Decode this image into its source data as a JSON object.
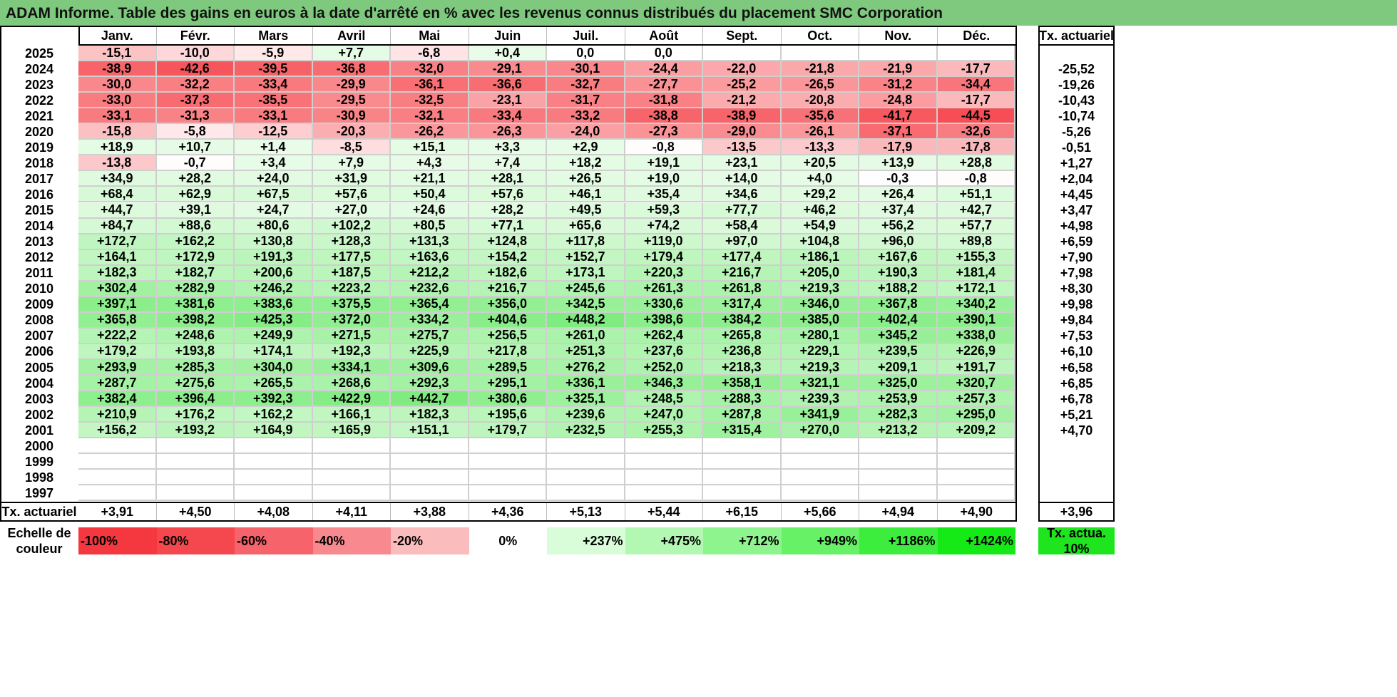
{
  "title": "ADAM Informe. Table des gains en euros à la date d'arrêté en % avec les revenus connus distribués du placement SMC Corporation",
  "chart_data": {
    "type": "heatmap",
    "title": "ADAM Informe. Table des gains en euros à la date d'arrêté en % avec les revenus connus distribués du placement SMC Corporation",
    "columns": [
      "Janv.",
      "Févr.",
      "Mars",
      "Avril",
      "Mai",
      "Juin",
      "Juil.",
      "Août",
      "Sept.",
      "Oct.",
      "Nov.",
      "Déc."
    ],
    "row_total_header": "Tx. actuariel",
    "rows": [
      {
        "year": "2025",
        "values": [
          "-15,1",
          "-10,0",
          "-5,9",
          "+7,7",
          "-6,8",
          "+0,4",
          "0,0",
          "0,0",
          "",
          "",
          "",
          ""
        ],
        "rate": ""
      },
      {
        "year": "2024",
        "values": [
          "-38,9",
          "-42,6",
          "-39,5",
          "-36,8",
          "-32,0",
          "-29,1",
          "-30,1",
          "-24,4",
          "-22,0",
          "-21,8",
          "-21,9",
          "-17,7"
        ],
        "rate": "-25,52"
      },
      {
        "year": "2023",
        "values": [
          "-30,0",
          "-32,2",
          "-33,4",
          "-29,9",
          "-36,1",
          "-36,6",
          "-32,7",
          "-27,7",
          "-25,2",
          "-26,5",
          "-31,2",
          "-34,4"
        ],
        "rate": "-19,26"
      },
      {
        "year": "2022",
        "values": [
          "-33,0",
          "-37,3",
          "-35,5",
          "-29,5",
          "-32,5",
          "-23,1",
          "-31,7",
          "-31,8",
          "-21,2",
          "-20,8",
          "-24,8",
          "-17,7"
        ],
        "rate": "-10,43"
      },
      {
        "year": "2021",
        "values": [
          "-33,1",
          "-31,3",
          "-33,1",
          "-30,9",
          "-32,1",
          "-33,4",
          "-33,2",
          "-38,8",
          "-38,9",
          "-35,6",
          "-41,7",
          "-44,5"
        ],
        "rate": "-10,74"
      },
      {
        "year": "2020",
        "values": [
          "-15,8",
          "-5,8",
          "-12,5",
          "-20,3",
          "-26,2",
          "-26,3",
          "-24,0",
          "-27,3",
          "-29,0",
          "-26,1",
          "-37,1",
          "-32,6"
        ],
        "rate": "-5,26"
      },
      {
        "year": "2019",
        "values": [
          "+18,9",
          "+10,7",
          "+1,4",
          "-8,5",
          "+15,1",
          "+3,3",
          "+2,9",
          "-0,8",
          "-13,5",
          "-13,3",
          "-17,9",
          "-17,8"
        ],
        "rate": "-0,51"
      },
      {
        "year": "2018",
        "values": [
          "-13,8",
          "-0,7",
          "+3,4",
          "+7,9",
          "+4,3",
          "+7,4",
          "+18,2",
          "+19,1",
          "+23,1",
          "+20,5",
          "+13,9",
          "+28,8"
        ],
        "rate": "+1,27"
      },
      {
        "year": "2017",
        "values": [
          "+34,9",
          "+28,2",
          "+24,0",
          "+31,9",
          "+21,1",
          "+28,1",
          "+26,5",
          "+19,0",
          "+14,0",
          "+4,0",
          "-0,3",
          "-0,8"
        ],
        "rate": "+2,04"
      },
      {
        "year": "2016",
        "values": [
          "+68,4",
          "+62,9",
          "+67,5",
          "+57,6",
          "+50,4",
          "+57,6",
          "+46,1",
          "+35,4",
          "+34,6",
          "+29,2",
          "+26,4",
          "+51,1"
        ],
        "rate": "+4,45"
      },
      {
        "year": "2015",
        "values": [
          "+44,7",
          "+39,1",
          "+24,7",
          "+27,0",
          "+24,6",
          "+28,2",
          "+49,5",
          "+59,3",
          "+77,7",
          "+46,2",
          "+37,4",
          "+42,7"
        ],
        "rate": "+3,47"
      },
      {
        "year": "2014",
        "values": [
          "+84,7",
          "+88,6",
          "+80,6",
          "+102,2",
          "+80,5",
          "+77,1",
          "+65,6",
          "+74,2",
          "+58,4",
          "+54,9",
          "+56,2",
          "+57,7"
        ],
        "rate": "+4,98"
      },
      {
        "year": "2013",
        "values": [
          "+172,7",
          "+162,2",
          "+130,8",
          "+128,3",
          "+131,3",
          "+124,8",
          "+117,8",
          "+119,0",
          "+97,0",
          "+104,8",
          "+96,0",
          "+89,8"
        ],
        "rate": "+6,59"
      },
      {
        "year": "2012",
        "values": [
          "+164,1",
          "+172,9",
          "+191,3",
          "+177,5",
          "+163,6",
          "+154,2",
          "+152,7",
          "+179,4",
          "+177,4",
          "+186,1",
          "+167,6",
          "+155,3"
        ],
        "rate": "+7,90"
      },
      {
        "year": "2011",
        "values": [
          "+182,3",
          "+182,7",
          "+200,6",
          "+187,5",
          "+212,2",
          "+182,6",
          "+173,1",
          "+220,3",
          "+216,7",
          "+205,0",
          "+190,3",
          "+181,4"
        ],
        "rate": "+7,98"
      },
      {
        "year": "2010",
        "values": [
          "+302,4",
          "+282,9",
          "+246,2",
          "+223,2",
          "+232,6",
          "+216,7",
          "+245,6",
          "+261,3",
          "+261,8",
          "+219,3",
          "+188,2",
          "+172,1"
        ],
        "rate": "+8,30"
      },
      {
        "year": "2009",
        "values": [
          "+397,1",
          "+381,6",
          "+383,6",
          "+375,5",
          "+365,4",
          "+356,0",
          "+342,5",
          "+330,6",
          "+317,4",
          "+346,0",
          "+367,8",
          "+340,2"
        ],
        "rate": "+9,98"
      },
      {
        "year": "2008",
        "values": [
          "+365,8",
          "+398,2",
          "+425,3",
          "+372,0",
          "+334,2",
          "+404,6",
          "+448,2",
          "+398,6",
          "+384,2",
          "+385,0",
          "+402,4",
          "+390,1"
        ],
        "rate": "+9,84"
      },
      {
        "year": "2007",
        "values": [
          "+222,2",
          "+248,6",
          "+249,9",
          "+271,5",
          "+275,7",
          "+256,5",
          "+261,0",
          "+262,4",
          "+265,8",
          "+280,1",
          "+345,2",
          "+338,0"
        ],
        "rate": "+7,53"
      },
      {
        "year": "2006",
        "values": [
          "+179,2",
          "+193,8",
          "+174,1",
          "+192,3",
          "+225,9",
          "+217,8",
          "+251,3",
          "+237,6",
          "+236,8",
          "+229,1",
          "+239,5",
          "+226,9"
        ],
        "rate": "+6,10"
      },
      {
        "year": "2005",
        "values": [
          "+293,9",
          "+285,3",
          "+304,0",
          "+334,1",
          "+309,6",
          "+289,5",
          "+276,2",
          "+252,0",
          "+218,3",
          "+219,3",
          "+209,1",
          "+191,7"
        ],
        "rate": "+6,58"
      },
      {
        "year": "2004",
        "values": [
          "+287,7",
          "+275,6",
          "+265,5",
          "+268,6",
          "+292,3",
          "+295,1",
          "+336,1",
          "+346,3",
          "+358,1",
          "+321,1",
          "+325,0",
          "+320,7"
        ],
        "rate": "+6,85"
      },
      {
        "year": "2003",
        "values": [
          "+382,4",
          "+396,4",
          "+392,3",
          "+422,9",
          "+442,7",
          "+380,6",
          "+325,1",
          "+248,5",
          "+288,3",
          "+239,3",
          "+253,9",
          "+257,3"
        ],
        "rate": "+6,78"
      },
      {
        "year": "2002",
        "values": [
          "+210,9",
          "+176,2",
          "+162,2",
          "+166,1",
          "+182,3",
          "+195,6",
          "+239,6",
          "+247,0",
          "+287,8",
          "+341,9",
          "+282,3",
          "+295,0"
        ],
        "rate": "+5,21"
      },
      {
        "year": "2001",
        "values": [
          "+156,2",
          "+193,2",
          "+164,9",
          "+165,9",
          "+151,1",
          "+179,7",
          "+232,5",
          "+255,3",
          "+315,4",
          "+270,0",
          "+213,2",
          "+209,2"
        ],
        "rate": "+4,70"
      },
      {
        "year": "2000",
        "values": [
          "",
          "",
          "",
          "",
          "",
          "",
          "",
          "",
          "",
          "",
          "",
          ""
        ],
        "rate": ""
      },
      {
        "year": "1999",
        "values": [
          "",
          "",
          "",
          "",
          "",
          "",
          "",
          "",
          "",
          "",
          "",
          ""
        ],
        "rate": ""
      },
      {
        "year": "1998",
        "values": [
          "",
          "",
          "",
          "",
          "",
          "",
          "",
          "",
          "",
          "",
          "",
          ""
        ],
        "rate": ""
      },
      {
        "year": "1997",
        "values": [
          "",
          "",
          "",
          "",
          "",
          "",
          "",
          "",
          "",
          "",
          "",
          ""
        ],
        "rate": ""
      }
    ],
    "column_totals_label": "Tx. actuariel",
    "column_totals": [
      "+3,91",
      "+4,50",
      "+4,08",
      "+4,11",
      "+3,88",
      "+4,36",
      "+5,13",
      "+5,44",
      "+6,15",
      "+5,66",
      "+4,94",
      "+4,90"
    ],
    "overall_rate": "+3,96",
    "scale_label": "Echelle de couleur",
    "scale": [
      {
        "label": "-100%",
        "color": "#f5383f"
      },
      {
        "label": "-80%",
        "color": "#f5474e"
      },
      {
        "label": "-60%",
        "color": "#f6636a"
      },
      {
        "label": "-40%",
        "color": "#f88a8f"
      },
      {
        "label": "-20%",
        "color": "#fbbcbe"
      },
      {
        "label": "0%",
        "color": "#ffffff"
      },
      {
        "label": "+237%",
        "color": "#d9fcd9"
      },
      {
        "label": "+475%",
        "color": "#b2f8b2"
      },
      {
        "label": "+712%",
        "color": "#8ef58e"
      },
      {
        "label": "+949%",
        "color": "#66f166"
      },
      {
        "label": "+1186%",
        "color": "#3ded3d"
      },
      {
        "label": "+1424%",
        "color": "#16ea16"
      }
    ],
    "scale_end": {
      "label": "Tx. actua. 10%",
      "color": "#1ee51e"
    }
  }
}
